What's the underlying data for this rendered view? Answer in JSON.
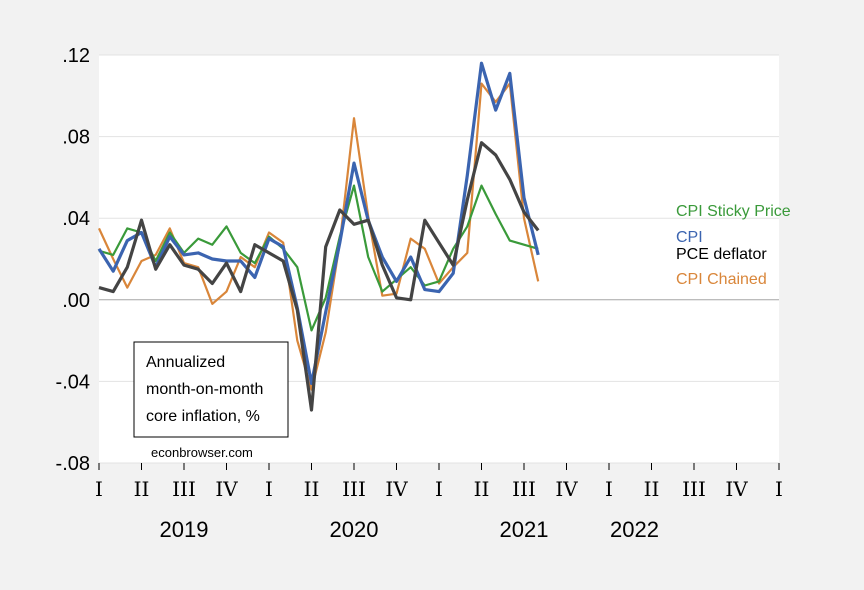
{
  "chart_data": {
    "type": "line",
    "note_lines": [
      "Annualized",
      "month-on-month",
      "core inflation, %"
    ],
    "credit": "econbrowser.com",
    "y_ticks": [
      ".12",
      ".08",
      ".04",
      ".00",
      "-.04",
      "-.08"
    ],
    "ylim": [
      -0.08,
      0.12
    ],
    "quarter_ticks": [
      "I",
      "II",
      "III",
      "IV",
      "I",
      "II",
      "III",
      "IV",
      "I",
      "II",
      "III",
      "IV",
      "I",
      "II",
      "III",
      "IV",
      "I"
    ],
    "year_labels": [
      {
        "label": "2019",
        "center_quarter": 2
      },
      {
        "label": "2020",
        "center_quarter": 6
      },
      {
        "label": "2021",
        "center_quarter": 10
      },
      {
        "label": "2022",
        "center_quarter": 12.6
      }
    ],
    "grid": "horizontal",
    "x_unit": "months since 2019-01",
    "series": [
      {
        "name": "CPI Sticky Price",
        "color": "#3a9a3a",
        "x": [
          0,
          1,
          2,
          3,
          4,
          5,
          6,
          7,
          8,
          9,
          10,
          11,
          12,
          13,
          14,
          15,
          16,
          17,
          18,
          19,
          20,
          21,
          22,
          23,
          24,
          25,
          26,
          27,
          28,
          29,
          30,
          31
        ],
        "values": [
          0.024,
          0.022,
          0.035,
          0.033,
          0.019,
          0.033,
          0.023,
          0.03,
          0.027,
          0.036,
          0.023,
          0.018,
          0.031,
          0.025,
          0.016,
          -0.015,
          0.001,
          0.031,
          0.056,
          0.021,
          0.004,
          0.01,
          0.016,
          0.007,
          0.009,
          0.025,
          0.036,
          0.056,
          0.042,
          0.029,
          0.027,
          0.025
        ]
      },
      {
        "name": "CPI",
        "color": "#3b64b0",
        "x": [
          0,
          1,
          2,
          3,
          4,
          5,
          6,
          7,
          8,
          9,
          10,
          11,
          12,
          13,
          14,
          15,
          16,
          17,
          18,
          19,
          20,
          21,
          22,
          23,
          24,
          25,
          26,
          27,
          28,
          29,
          30,
          31
        ],
        "values": [
          0.025,
          0.014,
          0.029,
          0.033,
          0.016,
          0.031,
          0.022,
          0.023,
          0.02,
          0.019,
          0.019,
          0.011,
          0.03,
          0.026,
          -0.004,
          -0.041,
          -0.006,
          0.028,
          0.067,
          0.039,
          0.021,
          0.009,
          0.021,
          0.005,
          0.004,
          0.013,
          0.061,
          0.116,
          0.093,
          0.111,
          0.05,
          0.022
        ]
      },
      {
        "name": "PCE deflator",
        "color": "#444444",
        "x": [
          0,
          1,
          2,
          3,
          4,
          5,
          6,
          7,
          8,
          9,
          10,
          11,
          12,
          13,
          14,
          15,
          16,
          17,
          18,
          19,
          20,
          21,
          22,
          23,
          24,
          25,
          26,
          27,
          28,
          29,
          30,
          31
        ],
        "values": [
          0.006,
          0.004,
          0.016,
          0.039,
          0.015,
          0.027,
          0.017,
          0.015,
          0.008,
          0.018,
          0.004,
          0.027,
          0.023,
          0.019,
          -0.005,
          -0.054,
          0.026,
          0.044,
          0.037,
          0.039,
          0.017,
          0.001,
          0.0,
          0.039,
          0.028,
          0.017,
          0.049,
          0.077,
          0.071,
          0.059,
          0.043,
          0.034
        ]
      },
      {
        "name": "CPI Chained",
        "color": "#d9863a",
        "x": [
          0,
          1,
          2,
          3,
          4,
          5,
          6,
          7,
          8,
          9,
          10,
          11,
          12,
          13,
          14,
          15,
          16,
          17,
          18,
          19,
          20,
          21,
          22,
          23,
          24,
          25,
          26,
          27,
          28,
          29,
          30,
          31
        ],
        "values": [
          0.035,
          0.02,
          0.006,
          0.019,
          0.022,
          0.035,
          0.018,
          0.016,
          -0.002,
          0.004,
          0.021,
          0.016,
          0.033,
          0.028,
          -0.02,
          -0.044,
          -0.016,
          0.028,
          0.089,
          0.041,
          0.002,
          0.003,
          0.03,
          0.025,
          0.008,
          0.016,
          0.023,
          0.106,
          0.097,
          0.106,
          0.04,
          0.009
        ]
      }
    ]
  }
}
